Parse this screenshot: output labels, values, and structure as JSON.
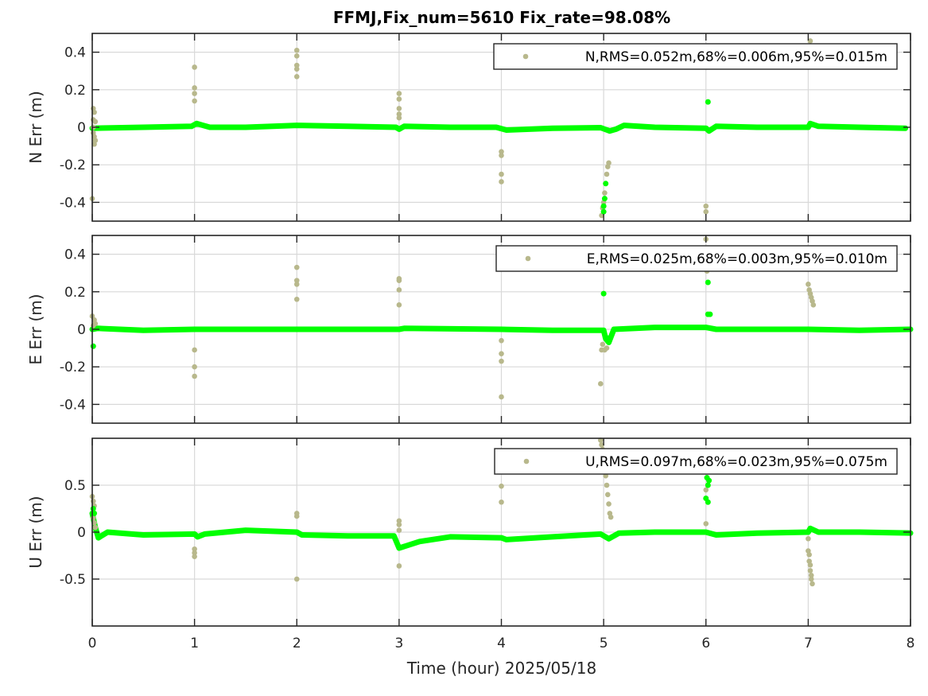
{
  "title": "FFMJ,Fix_num=5610 Fix_rate=98.08%",
  "chart_data": {
    "type": "scatter",
    "title": "FFMJ,Fix_num=5610 Fix_rate=98.08%",
    "xlabel": "Time (hour)  2025/05/18",
    "xlim": [
      0,
      8
    ],
    "xticks": [
      0,
      1,
      2,
      3,
      4,
      5,
      6,
      7,
      8
    ],
    "grid": true,
    "colors": {
      "float": "#b8b88c",
      "fix": "#00ff00"
    },
    "panels": [
      {
        "ylabel": "N Err (m)",
        "ylim": [
          -0.5,
          0.5
        ],
        "yticks": [
          -0.4,
          -0.2,
          0,
          0.2,
          0.4
        ],
        "legend": "N,RMS=0.052m,68%=0.006m,95%=0.015m",
        "fix_line": [
          [
            0,
            -0.005
          ],
          [
            0.5,
            0.0
          ],
          [
            0.97,
            0.005
          ],
          [
            1.02,
            0.02
          ],
          [
            1.15,
            0.0
          ],
          [
            1.5,
            0.0
          ],
          [
            2.0,
            0.01
          ],
          [
            2.5,
            0.005
          ],
          [
            2.97,
            0.0
          ],
          [
            3.0,
            -0.01
          ],
          [
            3.05,
            0.005
          ],
          [
            3.5,
            0.0
          ],
          [
            3.95,
            0.0
          ],
          [
            4.05,
            -0.015
          ],
          [
            4.5,
            -0.005
          ],
          [
            4.97,
            -0.002
          ],
          [
            5.06,
            -0.02
          ],
          [
            5.12,
            -0.01
          ],
          [
            5.2,
            0.01
          ],
          [
            5.5,
            0.0
          ],
          [
            6.0,
            -0.005
          ],
          [
            6.03,
            -0.02
          ],
          [
            6.1,
            0.005
          ],
          [
            6.5,
            0.0
          ],
          [
            7.0,
            0.0
          ],
          [
            7.02,
            0.02
          ],
          [
            7.1,
            0.005
          ],
          [
            7.5,
            0.0
          ],
          [
            7.95,
            -0.005
          ]
        ],
        "fix_extra": [
          [
            6.02,
            0.135
          ],
          [
            5.0,
            -0.42
          ],
          [
            5.01,
            -0.38
          ],
          [
            5.02,
            -0.3
          ],
          [
            5.0,
            -0.45
          ]
        ],
        "float_points": [
          [
            0.0,
            -0.38
          ],
          [
            0.01,
            0.1
          ],
          [
            0.02,
            0.08
          ],
          [
            0.01,
            0.04
          ],
          [
            0.03,
            0.03
          ],
          [
            0.01,
            -0.03
          ],
          [
            0.02,
            -0.05
          ],
          [
            0.03,
            -0.07
          ],
          [
            0.02,
            -0.09
          ],
          [
            0.01,
            0.0
          ],
          [
            1.0,
            0.32
          ],
          [
            1.0,
            0.21
          ],
          [
            1.0,
            0.18
          ],
          [
            1.0,
            0.14
          ],
          [
            2.0,
            0.41
          ],
          [
            2.0,
            0.38
          ],
          [
            2.0,
            0.33
          ],
          [
            2.0,
            0.31
          ],
          [
            2.0,
            0.27
          ],
          [
            3.0,
            0.18
          ],
          [
            3.0,
            0.15
          ],
          [
            3.0,
            0.1
          ],
          [
            3.0,
            0.07
          ],
          [
            3.0,
            0.05
          ],
          [
            4.0,
            -0.13
          ],
          [
            4.0,
            -0.15
          ],
          [
            4.0,
            -0.25
          ],
          [
            4.0,
            -0.29
          ],
          [
            4.98,
            -0.47
          ],
          [
            4.99,
            -0.43
          ],
          [
            5.0,
            -0.4
          ],
          [
            5.01,
            -0.35
          ],
          [
            5.02,
            -0.3
          ],
          [
            5.03,
            -0.25
          ],
          [
            5.04,
            -0.21
          ],
          [
            5.05,
            -0.19
          ],
          [
            6.0,
            -0.42
          ],
          [
            6.0,
            -0.45
          ],
          [
            7.02,
            0.46
          ]
        ]
      },
      {
        "ylabel": "E Err (m)",
        "ylim": [
          -0.5,
          0.5
        ],
        "yticks": [
          -0.4,
          -0.2,
          0,
          0.2,
          0.4
        ],
        "legend": "E,RMS=0.025m,68%=0.003m,95%=0.010m",
        "fix_line": [
          [
            0,
            0.0
          ],
          [
            0.05,
            0.005
          ],
          [
            0.5,
            -0.005
          ],
          [
            1.0,
            0.0
          ],
          [
            2.0,
            0.0
          ],
          [
            3.0,
            0.0
          ],
          [
            3.05,
            0.005
          ],
          [
            4.0,
            0.0
          ],
          [
            4.5,
            -0.005
          ],
          [
            5.0,
            -0.005
          ],
          [
            5.02,
            -0.05
          ],
          [
            5.05,
            -0.07
          ],
          [
            5.1,
            0.0
          ],
          [
            5.5,
            0.01
          ],
          [
            6.0,
            0.01
          ],
          [
            6.1,
            0.0
          ],
          [
            7.0,
            0.0
          ],
          [
            7.5,
            -0.005
          ],
          [
            8.0,
            0.0
          ]
        ],
        "fix_extra": [
          [
            0.01,
            -0.09
          ],
          [
            5.0,
            0.19
          ],
          [
            6.02,
            0.25
          ],
          [
            6.02,
            0.08
          ],
          [
            6.04,
            0.08
          ],
          [
            5.02,
            -0.04
          ]
        ],
        "float_points": [
          [
            0.0,
            0.07
          ],
          [
            0.02,
            0.05
          ],
          [
            0.03,
            0.03
          ],
          [
            0.01,
            0.02
          ],
          [
            1.0,
            -0.11
          ],
          [
            1.0,
            -0.2
          ],
          [
            1.0,
            -0.25
          ],
          [
            2.0,
            0.33
          ],
          [
            2.0,
            0.26
          ],
          [
            2.0,
            0.24
          ],
          [
            2.0,
            0.16
          ],
          [
            3.0,
            0.27
          ],
          [
            3.0,
            0.26
          ],
          [
            3.0,
            0.21
          ],
          [
            3.0,
            0.13
          ],
          [
            4.0,
            -0.06
          ],
          [
            4.0,
            -0.13
          ],
          [
            4.0,
            -0.17
          ],
          [
            4.0,
            -0.36
          ],
          [
            4.97,
            -0.29
          ],
          [
            4.98,
            -0.11
          ],
          [
            4.99,
            -0.08
          ],
          [
            5.01,
            -0.11
          ],
          [
            5.03,
            -0.1
          ],
          [
            6.0,
            0.48
          ],
          [
            6.01,
            0.31
          ],
          [
            7.0,
            0.24
          ],
          [
            7.01,
            0.21
          ],
          [
            7.02,
            0.19
          ],
          [
            7.03,
            0.17
          ],
          [
            7.04,
            0.15
          ],
          [
            7.05,
            0.13
          ]
        ]
      },
      {
        "ylabel": "U Err (m)",
        "ylim": [
          -1.0,
          1.0
        ],
        "yticks": [
          -0.5,
          0,
          0.5
        ],
        "legend": "U,RMS=0.097m,68%=0.023m,95%=0.075m",
        "fix_line": [
          [
            0,
            0.2
          ],
          [
            0.03,
            0.05
          ],
          [
            0.06,
            -0.06
          ],
          [
            0.15,
            0.0
          ],
          [
            0.5,
            -0.03
          ],
          [
            1.0,
            -0.02
          ],
          [
            1.03,
            -0.05
          ],
          [
            1.1,
            -0.02
          ],
          [
            1.5,
            0.02
          ],
          [
            2.0,
            0.0
          ],
          [
            2.05,
            -0.03
          ],
          [
            2.5,
            -0.04
          ],
          [
            2.95,
            -0.04
          ],
          [
            3.0,
            -0.17
          ],
          [
            3.2,
            -0.1
          ],
          [
            3.5,
            -0.05
          ],
          [
            4.0,
            -0.06
          ],
          [
            4.05,
            -0.08
          ],
          [
            4.5,
            -0.05
          ],
          [
            4.97,
            -0.02
          ],
          [
            5.05,
            -0.07
          ],
          [
            5.15,
            -0.01
          ],
          [
            5.5,
            0.0
          ],
          [
            6.0,
            0.0
          ],
          [
            6.1,
            -0.03
          ],
          [
            6.5,
            -0.01
          ],
          [
            7.0,
            0.0
          ],
          [
            7.02,
            0.04
          ],
          [
            7.1,
            0.0
          ],
          [
            7.5,
            0.0
          ],
          [
            8.0,
            -0.01
          ]
        ],
        "fix_extra": [
          [
            6.01,
            0.58
          ],
          [
            6.02,
            0.5
          ],
          [
            6.03,
            0.55
          ],
          [
            6.0,
            0.36
          ],
          [
            6.02,
            0.32
          ],
          [
            0.01,
            0.25
          ],
          [
            0.02,
            0.2
          ]
        ],
        "float_points": [
          [
            0.0,
            0.38
          ],
          [
            0.01,
            0.33
          ],
          [
            0.02,
            0.28
          ],
          [
            0.01,
            0.15
          ],
          [
            0.02,
            0.1
          ],
          [
            0.03,
            0.05
          ],
          [
            1.0,
            -0.18
          ],
          [
            1.0,
            -0.22
          ],
          [
            1.0,
            -0.26
          ],
          [
            2.0,
            0.2
          ],
          [
            2.0,
            0.17
          ],
          [
            2.0,
            -0.5
          ],
          [
            3.0,
            0.12
          ],
          [
            3.0,
            0.08
          ],
          [
            3.0,
            0.02
          ],
          [
            3.0,
            -0.36
          ],
          [
            4.0,
            0.49
          ],
          [
            4.0,
            0.32
          ],
          [
            4.97,
            0.98
          ],
          [
            4.98,
            0.93
          ],
          [
            4.99,
            0.88
          ],
          [
            5.0,
            0.8
          ],
          [
            5.01,
            0.7
          ],
          [
            5.02,
            0.6
          ],
          [
            5.03,
            0.5
          ],
          [
            5.04,
            0.4
          ],
          [
            5.05,
            0.3
          ],
          [
            5.06,
            0.2
          ],
          [
            5.07,
            0.16
          ],
          [
            6.0,
            0.45
          ],
          [
            6.0,
            0.09
          ],
          [
            7.0,
            -0.07
          ],
          [
            7.0,
            -0.2
          ],
          [
            7.01,
            -0.24
          ],
          [
            7.01,
            -0.31
          ],
          [
            7.02,
            -0.35
          ],
          [
            7.02,
            -0.41
          ],
          [
            7.03,
            -0.46
          ],
          [
            7.03,
            -0.5
          ],
          [
            7.04,
            -0.55
          ]
        ]
      }
    ]
  }
}
